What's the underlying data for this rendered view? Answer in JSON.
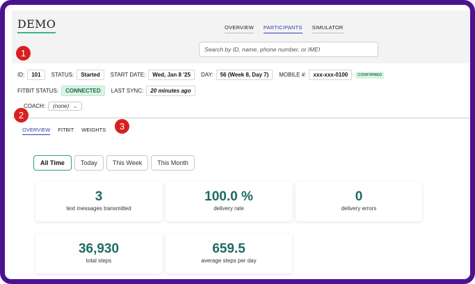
{
  "app": {
    "logo": "DEMO"
  },
  "topnav": {
    "items": [
      {
        "label": "OVERVIEW"
      },
      {
        "label": "PARTICIPANTS"
      },
      {
        "label": "SIMULATOR"
      }
    ]
  },
  "search": {
    "placeholder": "Search by ID, name, phone number, or IMEI"
  },
  "participant": {
    "id_label": "ID:",
    "id": "101",
    "status_label": "STATUS:",
    "status": "Started",
    "start_date_label": "START DATE:",
    "start_date": "Wed, Jan 8 '25",
    "day_label": "DAY:",
    "day": "56 (Week 8, Day 7)",
    "mobile_label": "MOBILE #:",
    "mobile": "xxx-xxx-0100",
    "mobile_badge": "CONFIRMED",
    "fitbit_status_label": "FITBIT STATUS:",
    "fitbit_status": "CONNECTED",
    "last_sync_label": "LAST SYNC:",
    "last_sync": "20 minutes ago",
    "coach_label": "COACH:",
    "coach": "(none)"
  },
  "subnav": {
    "items": [
      {
        "label": "OVERVIEW"
      },
      {
        "label": "FITBIT"
      },
      {
        "label": "WEIGHTS"
      }
    ]
  },
  "filters": [
    {
      "label": "All Time"
    },
    {
      "label": "Today"
    },
    {
      "label": "This Week"
    },
    {
      "label": "This Month"
    }
  ],
  "stats": [
    {
      "value": "3",
      "caption": "text messages transmitted"
    },
    {
      "value": "100.0 %",
      "caption": "delivery rate"
    },
    {
      "value": "0",
      "caption": "delivery errors"
    },
    {
      "value": "36,930",
      "caption": "total steps"
    },
    {
      "value": "659.5",
      "caption": "average steps per day"
    }
  ],
  "markers": [
    {
      "label": "1"
    },
    {
      "label": "2"
    },
    {
      "label": "3"
    }
  ],
  "colors": {
    "frame": "#4b1390",
    "accent": "#2e3da8",
    "teal": "#1e6b63",
    "marker": "#d81f1f"
  }
}
